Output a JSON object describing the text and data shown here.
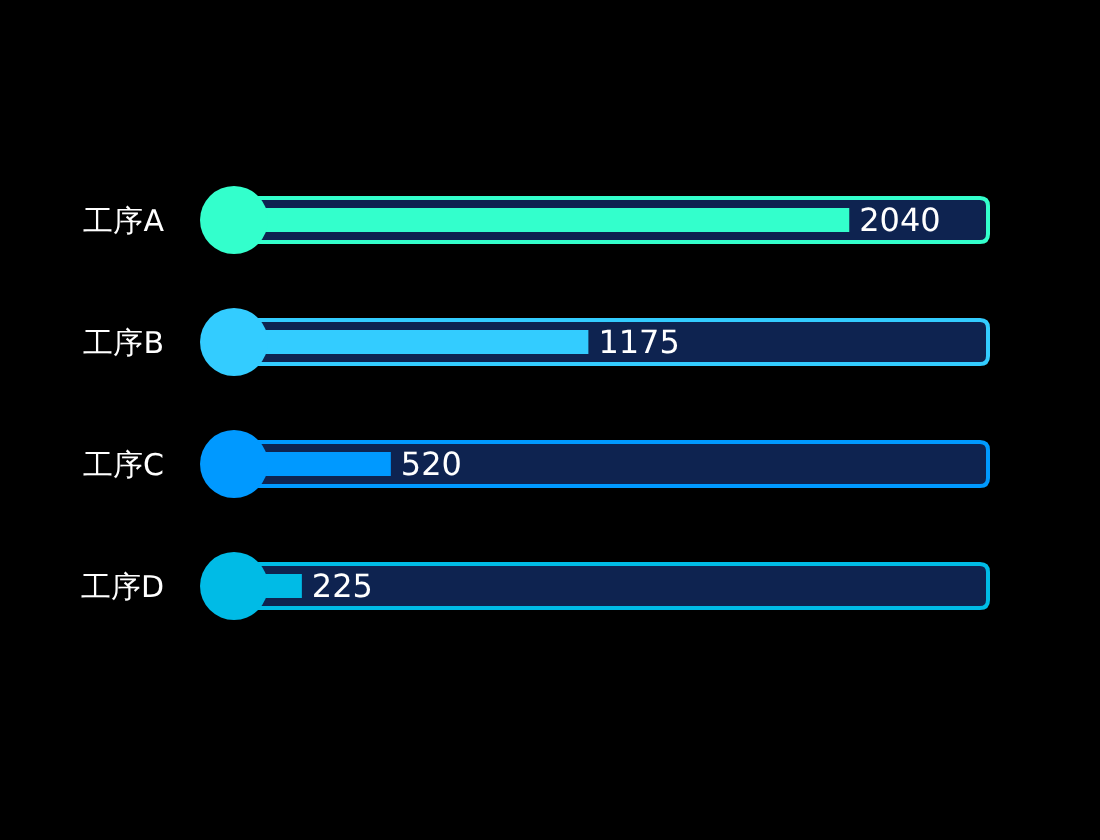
{
  "chart_data": {
    "type": "bar",
    "orientation": "horizontal",
    "categories": [
      "工序A",
      "工序B",
      "工序C",
      "工序D"
    ],
    "values": [
      2040,
      1175,
      520,
      225
    ],
    "colors": [
      "#33ffcc",
      "#33ccff",
      "#0099ff",
      "#00bbe6"
    ],
    "xlim": [
      0,
      2500
    ],
    "data_labels": true,
    "tick_labels": "y"
  }
}
